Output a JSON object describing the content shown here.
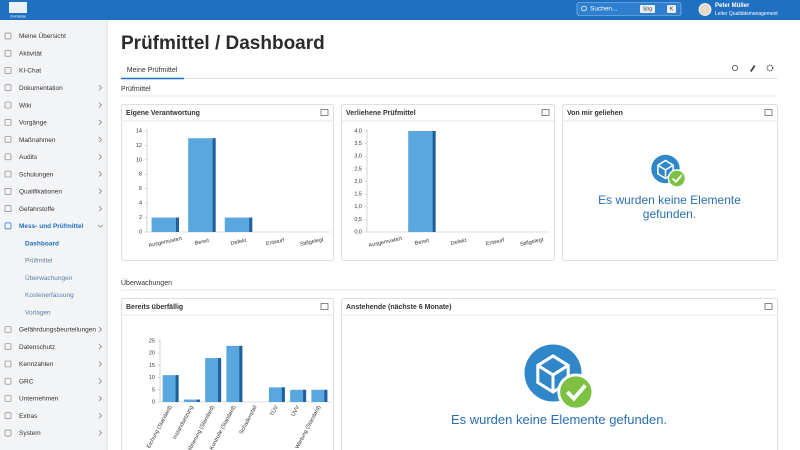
{
  "topbar": {
    "logo": "ConSense",
    "search_placeholder": "Suchen...",
    "shortcut": [
      "Strg",
      "K"
    ],
    "user": {
      "name": "Peter Müller",
      "role": "Leiter Qualitätsmanagement"
    }
  },
  "sidebar": {
    "items": [
      {
        "label": "Meine Übersicht"
      },
      {
        "label": "Aktivität"
      },
      {
        "label": "KI-Chat"
      },
      {
        "label": "Dokumentation",
        "expandable": true
      },
      {
        "label": "Wiki",
        "expandable": true
      },
      {
        "label": "Vorgänge",
        "expandable": true
      },
      {
        "label": "Maßnahmen",
        "expandable": true
      },
      {
        "label": "Audits",
        "expandable": true
      },
      {
        "label": "Schulungen",
        "expandable": true
      },
      {
        "label": "Qualifikationen",
        "expandable": true
      },
      {
        "label": "Gefahrstoffe",
        "expandable": true
      },
      {
        "label": "Mess- und Prüfmittel",
        "expanded": true,
        "children": [
          {
            "label": "Dashboard",
            "active": true
          },
          {
            "label": "Prüfmittel"
          },
          {
            "label": "Überwachungen"
          },
          {
            "label": "Kostenerfassung"
          },
          {
            "label": "Vorlagen"
          }
        ]
      },
      {
        "label": "Gefährdungsbeurteilungen",
        "expandable": true
      },
      {
        "label": "Datenschutz",
        "expandable": true
      },
      {
        "label": "Kennzahlen",
        "expandable": true
      },
      {
        "label": "GRC",
        "expandable": true
      },
      {
        "label": "Unternehmen",
        "expandable": true
      },
      {
        "label": "Extras",
        "expandable": true
      },
      {
        "label": "System",
        "expandable": true
      }
    ]
  },
  "page": {
    "title": "Prüfmittel / Dashboard",
    "tabs": [
      "Meine Prüfmittel"
    ],
    "sections": [
      {
        "title": "Prüfmittel",
        "widgets": [
          {
            "title": "Eigene Verantwortung",
            "chart": {
              "type": "bar",
              "color": "#5aa6df",
              "categories": [
                "Ausgemustert",
                "Bereit",
                "Defekt",
                "Entwurf",
                "Stillgelegt"
              ],
              "values": [
                2,
                13,
                2,
                0,
                0
              ],
              "ylim": [
                0,
                14
              ],
              "yticks": [
                0,
                2,
                4,
                6,
                8,
                10,
                12,
                14
              ]
            }
          },
          {
            "title": "Verliehene Prüfmittel",
            "chart": {
              "type": "bar",
              "color": "#5aa6df",
              "categories": [
                "Ausgemustert",
                "Bereit",
                "Defekt",
                "Entwurf",
                "Stillgelegt"
              ],
              "values": [
                0,
                4,
                0,
                0,
                0
              ],
              "ylim": [
                0,
                4
              ],
              "yticks": [
                {
                  "value": 0,
                  "label": "0,0"
                },
                {
                  "value": 0.5,
                  "label": "0,5"
                },
                {
                  "value": 1,
                  "label": "1,0"
                },
                {
                  "value": 1.5,
                  "label": "1,5"
                },
                {
                  "value": 2,
                  "label": "2,0"
                },
                {
                  "value": 2.5,
                  "label": "2,5"
                },
                {
                  "value": 3,
                  "label": "3,0"
                },
                {
                  "value": 3.5,
                  "label": "3,5"
                },
                {
                  "value": 4,
                  "label": "4,0"
                }
              ]
            }
          },
          {
            "title": "Von mir geliehen",
            "empty_message": "Es wurden keine Elemente gefunden."
          }
        ]
      },
      {
        "title": "Überwachungen",
        "widgets": [
          {
            "title": "Bereits überfällig",
            "chart": {
              "type": "bar",
              "color": "#5aa6df",
              "categories": [
                "Eichung (Standard)",
                "Instandsetzung",
                "Kalibrierung (Standard)",
                "Kontrolle (Standard)",
                "Schadensfall",
                "TÜV",
                "UVV",
                "Wartung (Standard)"
              ],
              "values": [
                11,
                1,
                18,
                23,
                0,
                6,
                5,
                5
              ],
              "ylim": [
                0,
                25
              ],
              "yticks": [
                0,
                5,
                10,
                15,
                20,
                25
              ]
            }
          },
          {
            "title": "Anstehende (nächste 6 Monate)",
            "empty_message": "Es wurden keine Elemente gefunden."
          }
        ]
      }
    ]
  }
}
